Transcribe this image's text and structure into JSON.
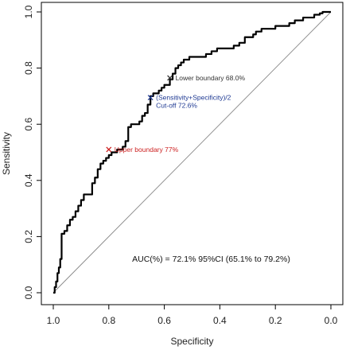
{
  "chart_data": {
    "type": "line",
    "title": "",
    "xlabel": "Specificity",
    "ylabel": "Sensitivity",
    "xlim": [
      1.0,
      0.0
    ],
    "ylim": [
      0.0,
      1.0
    ],
    "x_reversed": true,
    "x_ticks": [
      "1.0",
      "0.8",
      "0.6",
      "0.4",
      "0.2",
      "0.0"
    ],
    "x_tick_values": [
      1.0,
      0.8,
      0.6,
      0.4,
      0.2,
      0.0
    ],
    "y_ticks": [
      "0.0",
      "0.2",
      "0.4",
      "0.6",
      "0.8",
      "1.0"
    ],
    "y_tick_values": [
      0.0,
      0.2,
      0.4,
      0.6,
      0.8,
      1.0
    ],
    "grid": false,
    "reference_line": {
      "from": [
        1.0,
        0.0
      ],
      "to": [
        0.0,
        1.0
      ],
      "color": "#888888"
    },
    "series": [
      {
        "color": "#000000",
        "points": [
          [
            1.0,
            0.0
          ],
          [
            0.995,
            0.02
          ],
          [
            0.99,
            0.04
          ],
          [
            0.985,
            0.07
          ],
          [
            0.98,
            0.09
          ],
          [
            0.975,
            0.12
          ],
          [
            0.97,
            0.21
          ],
          [
            0.96,
            0.22
          ],
          [
            0.95,
            0.24
          ],
          [
            0.94,
            0.26
          ],
          [
            0.93,
            0.27
          ],
          [
            0.92,
            0.29
          ],
          [
            0.91,
            0.31
          ],
          [
            0.9,
            0.33
          ],
          [
            0.89,
            0.35
          ],
          [
            0.87,
            0.35
          ],
          [
            0.86,
            0.39
          ],
          [
            0.85,
            0.41
          ],
          [
            0.84,
            0.44
          ],
          [
            0.83,
            0.46
          ],
          [
            0.82,
            0.47
          ],
          [
            0.81,
            0.48
          ],
          [
            0.8,
            0.49
          ],
          [
            0.79,
            0.5
          ],
          [
            0.77,
            0.51
          ],
          [
            0.75,
            0.52
          ],
          [
            0.74,
            0.54
          ],
          [
            0.73,
            0.59
          ],
          [
            0.72,
            0.6
          ],
          [
            0.7,
            0.6
          ],
          [
            0.69,
            0.61
          ],
          [
            0.68,
            0.63
          ],
          [
            0.67,
            0.64
          ],
          [
            0.66,
            0.67
          ],
          [
            0.65,
            0.7
          ],
          [
            0.64,
            0.71
          ],
          [
            0.62,
            0.72
          ],
          [
            0.61,
            0.73
          ],
          [
            0.6,
            0.74
          ],
          [
            0.58,
            0.76
          ],
          [
            0.57,
            0.78
          ],
          [
            0.56,
            0.8
          ],
          [
            0.55,
            0.81
          ],
          [
            0.54,
            0.82
          ],
          [
            0.53,
            0.83
          ],
          [
            0.51,
            0.84
          ],
          [
            0.48,
            0.84
          ],
          [
            0.45,
            0.85
          ],
          [
            0.43,
            0.86
          ],
          [
            0.41,
            0.87
          ],
          [
            0.38,
            0.87
          ],
          [
            0.35,
            0.88
          ],
          [
            0.33,
            0.89
          ],
          [
            0.31,
            0.91
          ],
          [
            0.28,
            0.92
          ],
          [
            0.27,
            0.93
          ],
          [
            0.25,
            0.94
          ],
          [
            0.22,
            0.94
          ],
          [
            0.2,
            0.95
          ],
          [
            0.17,
            0.95
          ],
          [
            0.15,
            0.96
          ],
          [
            0.13,
            0.97
          ],
          [
            0.1,
            0.98
          ],
          [
            0.08,
            0.98
          ],
          [
            0.06,
            0.99
          ],
          [
            0.05,
            0.99
          ],
          [
            0.04,
            0.995
          ],
          [
            0.03,
            1.0
          ],
          [
            0.0,
            1.0
          ]
        ]
      }
    ],
    "annotations": [
      {
        "text_lines": [
          "Lower boundary 68.0%"
        ],
        "x": 0.58,
        "y": 0.765,
        "color": "#333333",
        "marker": "x"
      },
      {
        "text_lines": [
          "(Sensitivity+Specificity)/2",
          "Cut-off 72.6%"
        ],
        "x": 0.65,
        "y": 0.695,
        "color": "#1f3a93",
        "marker": "x"
      },
      {
        "text_lines": [
          "Upper boundary 77%"
        ],
        "x": 0.8,
        "y": 0.51,
        "color": "#cc1f1f",
        "marker": "x"
      }
    ],
    "summary_text": "AUC(%) = 72.1% 95%CI (65.1% to 79.2%)",
    "summary_anchor": {
      "x": 0.5,
      "y": 0.11
    }
  }
}
